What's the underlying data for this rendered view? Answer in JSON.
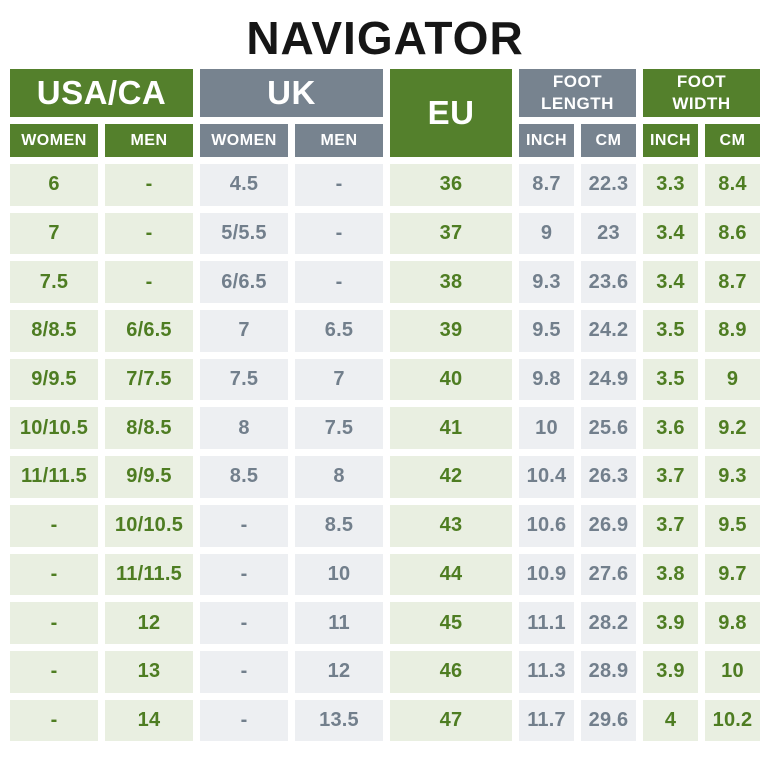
{
  "title": "NAVIGATOR",
  "colors": {
    "header_green": "#54802c",
    "header_gray": "#77838f",
    "cell_green_bg": "#e9efe1",
    "cell_gray_bg": "#edeff2",
    "cell_green_text": "#4e7d22",
    "cell_gray_text": "#727f8c",
    "title_color": "#161616"
  },
  "chart_data": {
    "type": "table",
    "title": "NAVIGATOR",
    "column_groups": [
      {
        "label": "USA/CA",
        "columns": [
          "WOMEN",
          "MEN"
        ],
        "theme": "green"
      },
      {
        "label": "UK",
        "columns": [
          "WOMEN",
          "MEN"
        ],
        "theme": "gray"
      },
      {
        "label": "EU",
        "columns": [],
        "theme": "green"
      },
      {
        "label": "FOOT LENGTH",
        "columns": [
          "INCH",
          "CM"
        ],
        "theme": "gray"
      },
      {
        "label": "FOOT WIDTH",
        "columns": [
          "INCH",
          "CM"
        ],
        "theme": "green"
      }
    ],
    "column_themes": [
      "green",
      "green",
      "gray",
      "gray",
      "green",
      "gray",
      "gray",
      "green",
      "green"
    ],
    "rows": [
      [
        "6",
        "-",
        "4.5",
        "-",
        "36",
        "8.7",
        "22.3",
        "3.3",
        "8.4"
      ],
      [
        "7",
        "-",
        "5/5.5",
        "-",
        "37",
        "9",
        "23",
        "3.4",
        "8.6"
      ],
      [
        "7.5",
        "-",
        "6/6.5",
        "-",
        "38",
        "9.3",
        "23.6",
        "3.4",
        "8.7"
      ],
      [
        "8/8.5",
        "6/6.5",
        "7",
        "6.5",
        "39",
        "9.5",
        "24.2",
        "3.5",
        "8.9"
      ],
      [
        "9/9.5",
        "7/7.5",
        "7.5",
        "7",
        "40",
        "9.8",
        "24.9",
        "3.5",
        "9"
      ],
      [
        "10/10.5",
        "8/8.5",
        "8",
        "7.5",
        "41",
        "10",
        "25.6",
        "3.6",
        "9.2"
      ],
      [
        "11/11.5",
        "9/9.5",
        "8.5",
        "8",
        "42",
        "10.4",
        "26.3",
        "3.7",
        "9.3"
      ],
      [
        "-",
        "10/10.5",
        "-",
        "8.5",
        "43",
        "10.6",
        "26.9",
        "3.7",
        "9.5"
      ],
      [
        "-",
        "11/11.5",
        "-",
        "10",
        "44",
        "10.9",
        "27.6",
        "3.8",
        "9.7"
      ],
      [
        "-",
        "12",
        "-",
        "11",
        "45",
        "11.1",
        "28.2",
        "3.9",
        "9.8"
      ],
      [
        "-",
        "13",
        "-",
        "12",
        "46",
        "11.3",
        "28.9",
        "3.9",
        "10"
      ],
      [
        "-",
        "14",
        "-",
        "13.5",
        "47",
        "11.7",
        "29.6",
        "4",
        "10.2"
      ]
    ]
  }
}
